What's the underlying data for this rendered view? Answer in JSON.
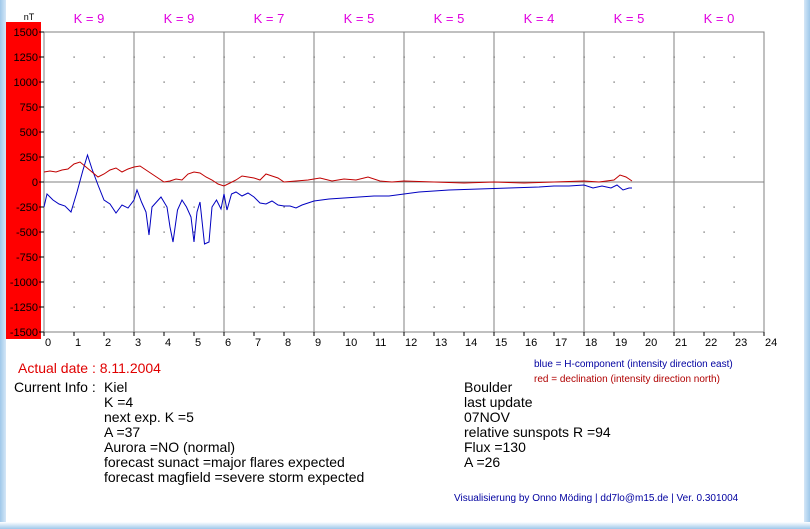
{
  "chart_data": {
    "type": "line",
    "unit_label": "nT",
    "k_labels": [
      "K = 9",
      "K = 9",
      "K = 7",
      "K = 5",
      "K = 5",
      "K = 4",
      "K = 5",
      "K = 0"
    ],
    "x_ticks": [
      "0",
      "1",
      "2",
      "3",
      "4",
      "5",
      "6",
      "7",
      "8",
      "9",
      "10",
      "11",
      "12",
      "13",
      "14",
      "15",
      "16",
      "17",
      "18",
      "19",
      "20",
      "21",
      "22",
      "23",
      "24"
    ],
    "y_ticks": [
      "1500",
      "1250",
      "1000",
      "750",
      "500",
      "250",
      "0",
      "-250",
      "-500",
      "-750",
      "-1000",
      "-1250",
      "-1500"
    ],
    "xlim": [
      0,
      24
    ],
    "ylim": [
      -1500,
      1500
    ],
    "grid": true,
    "series": [
      {
        "name": "blue = H-component (intensity direction east)",
        "color": "#0000c0",
        "x": [
          0,
          0.1,
          0.3,
          0.5,
          0.7,
          0.9,
          1.0,
          1.1,
          1.3,
          1.45,
          1.6,
          1.8,
          2.0,
          2.2,
          2.4,
          2.6,
          2.8,
          3.0,
          3.1,
          3.25,
          3.4,
          3.5,
          3.6,
          3.75,
          3.9,
          4.0,
          4.1,
          4.2,
          4.3,
          4.45,
          4.6,
          4.75,
          4.9,
          5.0,
          5.1,
          5.2,
          5.35,
          5.5,
          5.6,
          5.75,
          5.9,
          6.0,
          6.1,
          6.25,
          6.4,
          6.6,
          6.8,
          7.0,
          7.2,
          7.4,
          7.6,
          7.8,
          8.0,
          8.2,
          8.4,
          8.6,
          8.8,
          9.0,
          9.5,
          10.0,
          10.5,
          11.0,
          11.5,
          12.0,
          12.5,
          13.0,
          13.5,
          14.0,
          14.5,
          15.0,
          15.5,
          16.0,
          16.5,
          17.0,
          17.5,
          18.0,
          18.3,
          18.6,
          18.9,
          19.1,
          19.3,
          19.5,
          19.6
        ],
        "values": [
          -250,
          -120,
          -180,
          -220,
          -240,
          -300,
          -200,
          -100,
          120,
          270,
          130,
          -30,
          -180,
          -220,
          -310,
          -230,
          -260,
          -180,
          -80,
          -200,
          -300,
          -530,
          -250,
          -200,
          -150,
          -200,
          -250,
          -450,
          -600,
          -280,
          -180,
          -250,
          -350,
          -600,
          -300,
          -200,
          -620,
          -600,
          -250,
          -180,
          -270,
          -120,
          -280,
          -120,
          -100,
          -140,
          -110,
          -150,
          -210,
          -220,
          -190,
          -230,
          -240,
          -240,
          -260,
          -230,
          -210,
          -190,
          -170,
          -160,
          -150,
          -140,
          -140,
          -120,
          -100,
          -90,
          -80,
          -75,
          -70,
          -65,
          -60,
          -55,
          -50,
          -40,
          -40,
          -30,
          -60,
          -40,
          -60,
          -30,
          -80,
          -60,
          -60
        ]
      },
      {
        "name": "red = declination (intensity direction north)",
        "color": "#c00000",
        "x": [
          0,
          0.2,
          0.4,
          0.6,
          0.8,
          1.0,
          1.2,
          1.4,
          1.6,
          1.8,
          2.0,
          2.2,
          2.4,
          2.6,
          2.8,
          3.0,
          3.2,
          3.4,
          3.6,
          3.8,
          4.0,
          4.2,
          4.4,
          4.6,
          4.8,
          5.0,
          5.2,
          5.4,
          5.6,
          5.8,
          6.0,
          6.2,
          6.4,
          6.6,
          6.8,
          7.0,
          7.2,
          7.4,
          7.6,
          7.8,
          8.0,
          8.4,
          8.8,
          9.2,
          9.6,
          10.0,
          10.4,
          10.8,
          11.2,
          11.6,
          12.0,
          13.0,
          14.0,
          15.0,
          16.0,
          17.0,
          18.0,
          18.5,
          19.0,
          19.2,
          19.4,
          19.6
        ],
        "values": [
          100,
          110,
          100,
          120,
          130,
          180,
          200,
          150,
          100,
          50,
          80,
          120,
          140,
          100,
          130,
          150,
          160,
          120,
          80,
          40,
          0,
          10,
          30,
          20,
          80,
          100,
          90,
          50,
          20,
          -20,
          -40,
          -10,
          20,
          60,
          50,
          40,
          20,
          80,
          60,
          40,
          0,
          10,
          20,
          40,
          10,
          30,
          20,
          50,
          10,
          0,
          10,
          0,
          -10,
          0,
          -10,
          0,
          10,
          0,
          20,
          70,
          50,
          10
        ]
      }
    ]
  },
  "info": {
    "actual_date": "Actual date : 8.11.2004",
    "current_info_label": "Current Info :",
    "kiel_lines": [
      "Kiel",
      "K =4",
      "next exp. K =5",
      "A =37",
      "Aurora =NO (normal)",
      "forecast sunact =major flares expected",
      "forecast magfield =severe storm expected"
    ],
    "boulder_lines": [
      "Boulder",
      "last update",
      "07NOV",
      "relative sunspots R =94",
      "Flux =130",
      "A =26"
    ],
    "legend_blue": "blue = H-component (intensity direction east)",
    "legend_red": "red = declination (intensity direction north)",
    "credit": "Visualisierung by Onno Möding | dd7lo@m15.de | Ver. 0.301004"
  },
  "colors": {
    "k_label": "#e000e0",
    "axis_red_band": "#ff0000",
    "grid": "#808080",
    "title_red": "#ff0000"
  }
}
